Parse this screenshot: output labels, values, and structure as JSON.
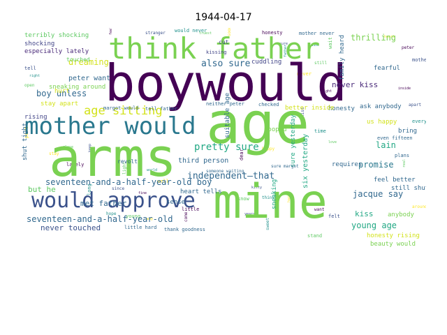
{
  "chart_data": {
    "type": "wordcloud",
    "title": "1944-04-17",
    "palette": [
      "#440154",
      "#3b528b",
      "#21918c",
      "#5ec962",
      "#fde725"
    ],
    "words": [
      {
        "text": "boywould",
        "color": "#440154"
      },
      {
        "text": "age",
        "color": "#7ad151"
      },
      {
        "text": "arms",
        "color": "#7ad151"
      },
      {
        "text": "mine",
        "color": "#7ad151"
      },
      {
        "text": "think father",
        "color": "#7ad151"
      },
      {
        "text": "mother would",
        "color": "#2a788e"
      },
      {
        "text": "would approve",
        "color": "#3b528b"
      },
      {
        "text": "age sitting",
        "color": "#d2e21b"
      },
      {
        "text": "seventeen-and-a-half-year-old boy",
        "color": "#31688e"
      },
      {
        "text": "seventeen-and-a-half-year-old",
        "color": "#31688e"
      },
      {
        "text": "independent—that",
        "color": "#31688e"
      },
      {
        "text": "pretty sure",
        "color": "#22a884"
      },
      {
        "text": "also sure",
        "color": "#31688e"
      },
      {
        "text": "jacque say",
        "color": "#31688e"
      },
      {
        "text": "young age",
        "color": "#22a884"
      },
      {
        "text": "thrilling",
        "color": "#7ad151"
      },
      {
        "text": "dreaming",
        "color": "#d2e21b"
      },
      {
        "text": "boy unless",
        "color": "#31688e"
      },
      {
        "text": "met father",
        "color": "#31688e"
      },
      {
        "text": "never touched",
        "color": "#3b528b"
      },
      {
        "text": "never kiss",
        "color": "#482878"
      },
      {
        "text": "promise",
        "color": "#2a788e"
      },
      {
        "text": "lain",
        "color": "#22a884"
      },
      {
        "text": "but he",
        "color": "#5ec962"
      },
      {
        "text": "especially lately",
        "color": "#482878"
      },
      {
        "text": "peter want",
        "color": "#31688e"
      },
      {
        "text": "shocking",
        "color": "#414487"
      },
      {
        "text": "terribly shocking",
        "color": "#5ec962"
      },
      {
        "text": "cuddling",
        "color": "#414487"
      },
      {
        "text": "fearful",
        "color": "#31688e"
      },
      {
        "text": "us happy",
        "color": "#d2e21b"
      },
      {
        "text": "kiss",
        "color": "#22a884"
      },
      {
        "text": "feel better",
        "color": "#31688e"
      },
      {
        "text": "anybody",
        "color": "#7ad151"
      },
      {
        "text": "honesty rising",
        "color": "#d2e21b"
      },
      {
        "text": "beauty would",
        "color": "#7ad151"
      },
      {
        "text": "ask anybody",
        "color": "#31688e"
      },
      {
        "text": "bring",
        "color": "#31688e"
      },
      {
        "text": "still shut",
        "color": "#31688e"
      },
      {
        "text": "honesty",
        "color": "#31688e"
      },
      {
        "text": "sure yesterday",
        "color": "#22a884"
      },
      {
        "text": "six yesterday",
        "color": "#22a884"
      },
      {
        "text": "better inside",
        "color": "#d2e21b"
      },
      {
        "text": "third person",
        "color": "#31688e"
      },
      {
        "text": "heart tells",
        "color": "#31688e"
      },
      {
        "text": "sense",
        "color": "#31688e"
      },
      {
        "text": "revolt",
        "color": "#31688e"
      },
      {
        "text": "rising",
        "color": "#414487"
      },
      {
        "text": "shut tight",
        "color": "#31688e"
      },
      {
        "text": "stay apart",
        "color": "#d2e21b"
      },
      {
        "text": "sneaking around",
        "color": "#7ad151"
      },
      {
        "text": "hurt",
        "color": "#d2e21b"
      },
      {
        "text": "suitable age",
        "color": "#31688e"
      },
      {
        "text": "requires",
        "color": "#31688e"
      },
      {
        "text": "cooped",
        "color": "#7ad151"
      },
      {
        "text": "sneaking",
        "color": "#22a884"
      },
      {
        "text": "tell father",
        "color": "#31688e"
      },
      {
        "text": "checked",
        "color": "#31688e"
      },
      {
        "text": "family heard",
        "color": "#31688e"
      },
      {
        "text": "kissing",
        "color": "#414487"
      },
      {
        "text": "cut",
        "color": "#414487"
      },
      {
        "text": "mother never",
        "color": "#31688e"
      },
      {
        "text": "neither peter",
        "color": "#31688e"
      },
      {
        "text": "even fifteen",
        "color": "#31688e"
      },
      {
        "text": "plans",
        "color": "#31688e"
      },
      {
        "text": "sure margot",
        "color": "#31688e"
      },
      {
        "text": "thank goodness",
        "color": "#31688e"
      },
      {
        "text": "little hard",
        "color": "#31688e"
      },
      {
        "text": "margot would",
        "color": "#31688e"
      },
      {
        "text": "someone waiting",
        "color": "#31688e"
      },
      {
        "text": "touched",
        "color": "#5ec962"
      }
    ],
    "filler": [
      "feeling",
      "stranger",
      "would never",
      "truest",
      "soon",
      "honesty",
      "sure",
      "ask",
      "wait",
      "heart",
      "peter",
      "mother",
      "father",
      "still",
      "never",
      "tight",
      "kiss",
      "time",
      "love",
      "happy",
      "dear",
      "kitty",
      "think",
      "know",
      "hard",
      "want",
      "felt",
      "world",
      "light",
      "well",
      "fine",
      "since",
      "long",
      "close",
      "stay",
      "lately",
      "keep",
      "hope",
      "young",
      "way",
      "come",
      "tell",
      "right",
      "open",
      "part",
      "inside",
      "apart",
      "every",
      "real",
      "around",
      "little",
      "years",
      "sweet",
      "stand"
    ]
  }
}
